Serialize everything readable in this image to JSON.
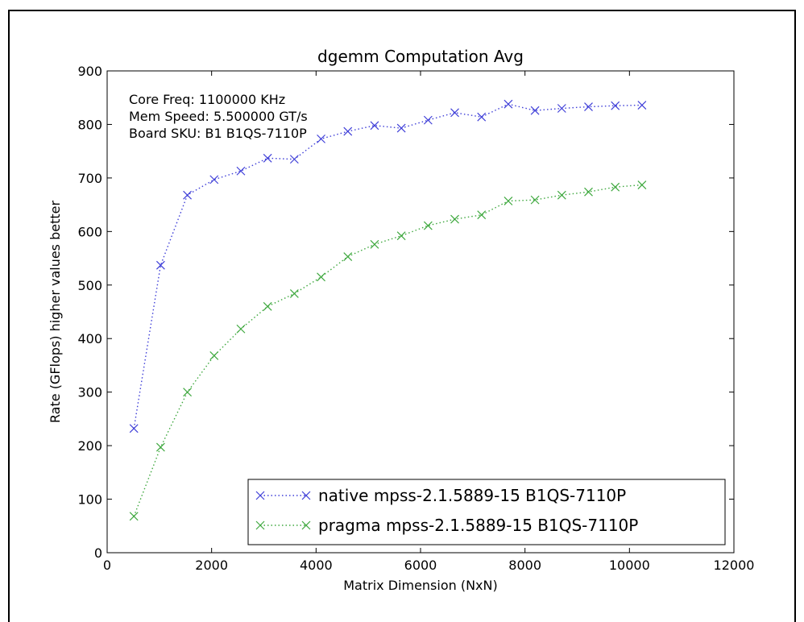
{
  "chart_data": {
    "type": "line",
    "title": "dgemm Computation Avg",
    "xlabel": "Matrix Dimension (NxN)",
    "ylabel": "Rate (GFlops) higher values better",
    "xlim": [
      0,
      12000
    ],
    "ylim": [
      0,
      900
    ],
    "xticks": [
      0,
      2000,
      4000,
      6000,
      8000,
      10000,
      12000
    ],
    "yticks": [
      0,
      100,
      200,
      300,
      400,
      500,
      600,
      700,
      800,
      900
    ],
    "grid": false,
    "legend_position": "lower right",
    "annotations": [
      "Core Freq: 1100000 KHz",
      "Mem Speed: 5.500000 GT/s",
      "Board SKU: B1 B1QS-7110P"
    ],
    "x": [
      512,
      1024,
      1536,
      2048,
      2560,
      3072,
      3584,
      4096,
      4608,
      5120,
      5632,
      6144,
      6656,
      7168,
      7680,
      8192,
      8704,
      9216,
      9728,
      10240
    ],
    "series": [
      {
        "name": "native mpss-2.1.5889-15 B1QS-7110P",
        "color": "#3f3fd8",
        "marker": "x",
        "linestyle": "dotted",
        "values": [
          232,
          537,
          668,
          697,
          713,
          737,
          735,
          773,
          787,
          798,
          793,
          808,
          822,
          814,
          838,
          826,
          830,
          833,
          835,
          836
        ]
      },
      {
        "name": "pragma mpss-2.1.5889-15 B1QS-7110P",
        "color": "#3fa83f",
        "marker": "x",
        "linestyle": "dotted",
        "values": [
          68,
          197,
          300,
          368,
          418,
          460,
          484,
          515,
          553,
          576,
          592,
          611,
          623,
          631,
          657,
          659,
          668,
          674,
          683,
          687
        ]
      }
    ]
  }
}
